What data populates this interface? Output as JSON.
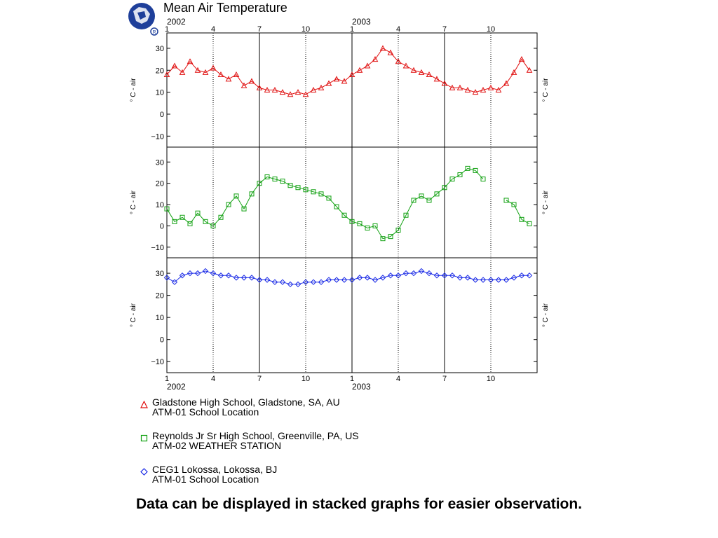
{
  "title": "Mean Air Temperature",
  "caption": "Data can be displayed in stacked graphs for easier observation.",
  "chart_data": {
    "type": "line",
    "subplots": "3 stacked panels sharing the x axis",
    "x_months": {
      "ticks": [
        "1",
        "4",
        "7",
        "10",
        "1",
        "4",
        "7",
        "10"
      ],
      "year_labels": [
        "2002",
        "2003"
      ]
    },
    "ylabel": "° C - air",
    "ylim": [
      -15,
      37
    ],
    "yticks": [
      30,
      20,
      10,
      0,
      -10
    ],
    "grid": "dotted verticals at months 4 and 10, solid at 7 and January 2003",
    "series": [
      {
        "name": "Gladstone High School, Gladstone, SA, AU",
        "sub": "ATM-01 School Location",
        "color": "#e01010",
        "marker": "triangle",
        "x": [
          0.0,
          0.5,
          1.0,
          1.5,
          2.0,
          2.5,
          3.0,
          3.5,
          4.0,
          4.5,
          5.0,
          5.5,
          6.0,
          6.5,
          7.0,
          7.5,
          8.0,
          8.5,
          9.0,
          9.5,
          10.0,
          10.5,
          11.0,
          11.5,
          12.0,
          12.5,
          13.0,
          13.5,
          14.0,
          14.5,
          15.0,
          15.5,
          16.0,
          16.5,
          17.0,
          17.5,
          18.0,
          18.5,
          19.0,
          19.5,
          20.0,
          20.5,
          21.0,
          21.5,
          22.0,
          22.5,
          23.0,
          23.5
        ],
        "y": [
          18,
          22,
          19,
          24,
          20,
          19,
          21,
          18,
          16,
          18,
          13,
          15,
          12,
          11,
          11,
          10,
          9,
          10,
          9,
          11,
          12,
          14,
          16,
          15,
          18,
          20,
          22,
          25,
          30,
          28,
          24,
          22,
          20,
          19,
          18,
          16,
          14,
          12,
          12,
          11,
          10,
          11,
          12,
          11,
          14,
          19,
          25,
          20
        ]
      },
      {
        "name": "Reynolds Jr Sr High School, Greenville, PA, US",
        "sub": "ATM-02 WEATHER STATION",
        "color": "#10a010",
        "marker": "square",
        "x": [
          0.0,
          0.5,
          1.0,
          1.5,
          2.0,
          2.5,
          3.0,
          3.5,
          4.0,
          4.5,
          5.0,
          5.5,
          6.0,
          6.5,
          7.0,
          7.5,
          8.0,
          8.5,
          9.0,
          9.5,
          10.0,
          10.5,
          11.0,
          11.5,
          12.0,
          12.5,
          13.0,
          13.5,
          14.0,
          14.5,
          15.0,
          15.5,
          16.0,
          16.5,
          17.0,
          17.5,
          18.0,
          18.5,
          19.0,
          19.5,
          20.0,
          20.5,
          22.0,
          22.5,
          23.0,
          23.5
        ],
        "y": [
          8,
          2,
          4,
          1,
          6,
          2,
          0,
          4,
          10,
          14,
          8,
          15,
          20,
          23,
          22,
          21,
          19,
          18,
          17,
          16,
          15,
          13,
          9,
          5,
          2,
          1,
          -1,
          0,
          -6,
          -5,
          -2,
          5,
          12,
          14,
          12,
          15,
          18,
          22,
          24,
          27,
          26,
          22,
          12,
          10,
          3,
          1
        ]
      },
      {
        "name": "CEG1 Lokossa, Lokossa, BJ",
        "sub": "ATM-01 School Location",
        "color": "#1a2ae6",
        "marker": "diamond",
        "x": [
          0.0,
          0.5,
          1.0,
          1.5,
          2.0,
          2.5,
          3.0,
          3.5,
          4.0,
          4.5,
          5.0,
          5.5,
          6.0,
          6.5,
          7.0,
          7.5,
          8.0,
          8.5,
          9.0,
          9.5,
          10.0,
          10.5,
          11.0,
          11.5,
          12.0,
          12.5,
          13.0,
          13.5,
          14.0,
          14.5,
          15.0,
          15.5,
          16.0,
          16.5,
          17.0,
          17.5,
          18.0,
          18.5,
          19.0,
          19.5,
          20.0,
          20.5,
          21.0,
          21.5,
          22.0,
          22.5,
          23.0,
          23.5
        ],
        "y": [
          28,
          26,
          29,
          30,
          30,
          31,
          30,
          29,
          29,
          28,
          28,
          28,
          27,
          27,
          26,
          26,
          25,
          25,
          26,
          26,
          26,
          27,
          27,
          27,
          27,
          28,
          28,
          27,
          28,
          29,
          29,
          30,
          30,
          31,
          30,
          29,
          29,
          29,
          28,
          28,
          27,
          27,
          27,
          27,
          27,
          28,
          29,
          29
        ]
      }
    ]
  }
}
